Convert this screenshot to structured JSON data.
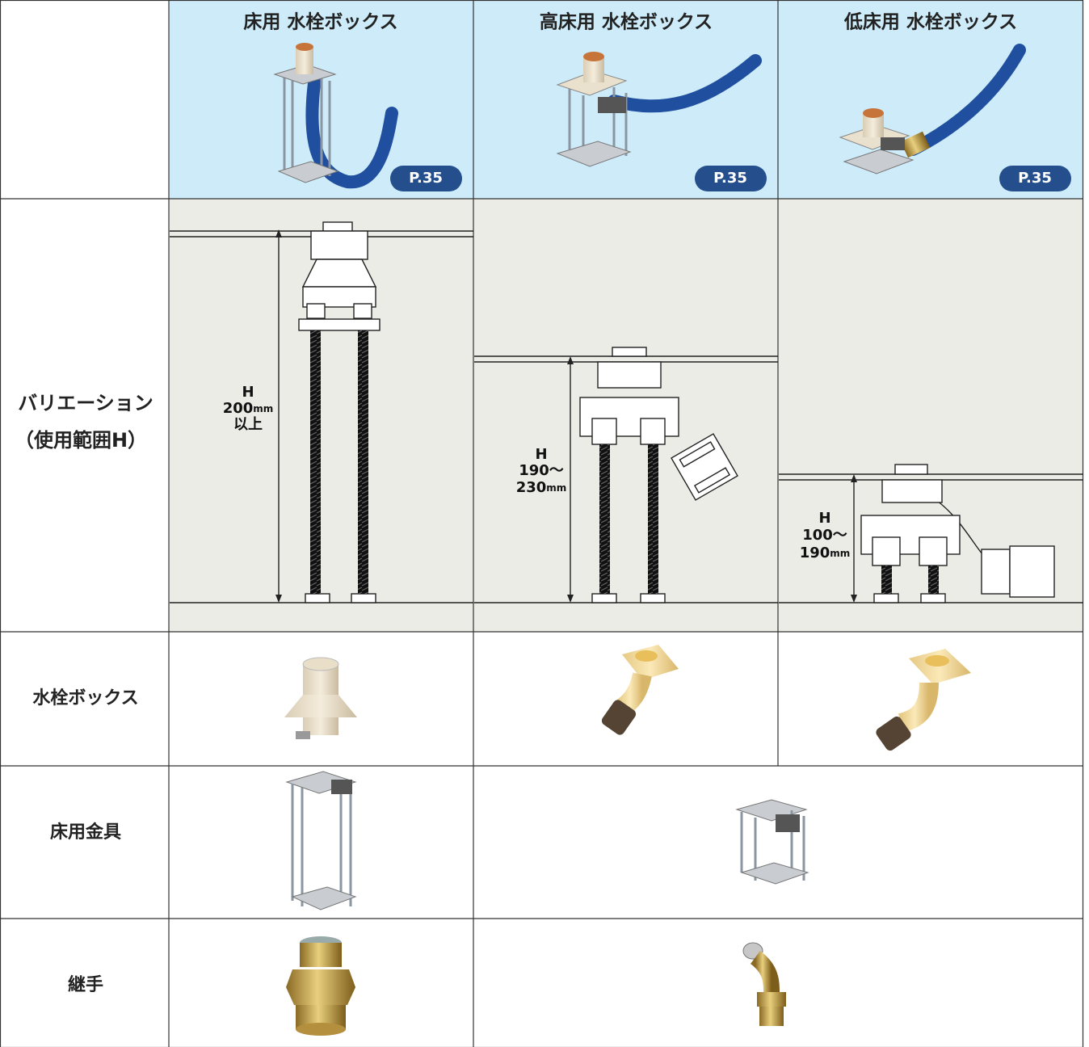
{
  "table": {
    "columns": [
      "床用 水栓ボックス",
      "高床用 水栓ボックス",
      "低床用 水栓ボックス"
    ],
    "page_refs": [
      "P.35",
      "P.35",
      "P.35"
    ],
    "rows": {
      "variation": [
        "バリエーション",
        "（使用範囲H）"
      ],
      "box": "水栓ボックス",
      "bracket": "床用金具",
      "joint": "継手"
    },
    "ranges": [
      [
        [
          "H"
        ],
        [
          "200",
          "mm"
        ],
        [
          "以上"
        ]
      ],
      [
        [
          "H"
        ],
        [
          "190〜"
        ],
        [
          "230",
          "mm"
        ]
      ],
      [
        [
          "H"
        ],
        [
          "100〜"
        ],
        [
          "190",
          "mm"
        ]
      ]
    ]
  }
}
